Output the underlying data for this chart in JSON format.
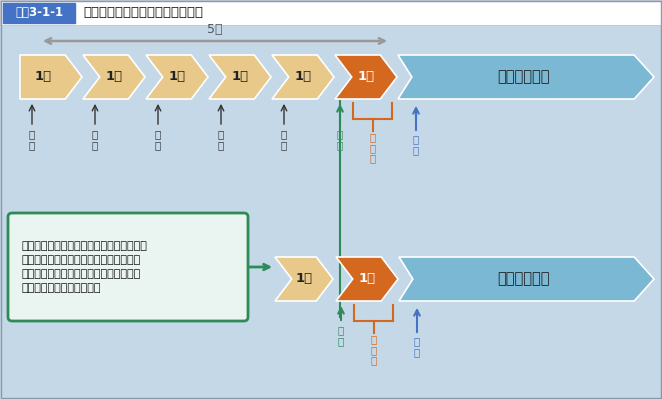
{
  "title_box_color": "#4472c4",
  "title_box_text": "図表3-1-1",
  "title_text": "無期労働契約への転換制度の概要",
  "bg_color": "#c5d8e8",
  "main_bg": "#d8e8f0",
  "arrow_color_tan": "#e8c98a",
  "arrow_color_tan_edge": "#d4a855",
  "arrow_color_orange": "#d4681e",
  "arrow_color_blue_large": "#7ab8d4",
  "arrow_color_blue_edge": "#5a9ab8",
  "brace_color_orange": "#d4681e",
  "text_color_dark": "#333333",
  "text_color_green": "#2e8b57",
  "text_color_orange": "#d4681e",
  "text_color_blue": "#4472c4",
  "five_year_label": "5年",
  "year_label": "1年",
  "muuki_label": "無期労働契約",
  "bottom_box_color_border": "#2e8b57",
  "bottom_box_color_fill": "#eaf4f0",
  "bottom_box_text": "通算５年を超えて契約更新した労働者が、\nその契約期間中に無期転換の申込みをし\nなかったときは、次の更新以降でも無期\n転換の申込みができます。",
  "label_tekketu": "締\n結",
  "label_koushin": "更\n新",
  "label_moshikomi": "申\n込\nみ",
  "label_tenkan": "転\n換",
  "white": "#ffffff",
  "title_border": "#aaaacc"
}
